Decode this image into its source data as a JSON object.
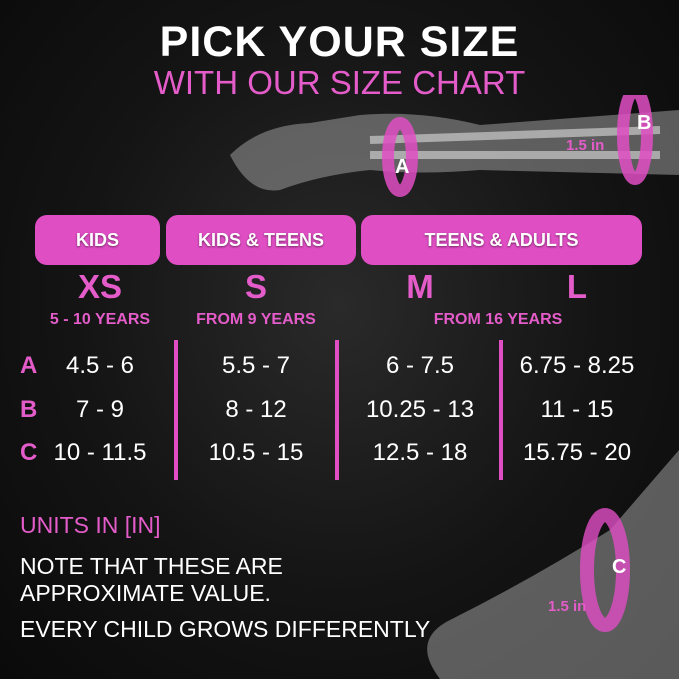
{
  "title": "PICK YOUR SIZE",
  "subtitle": "WITH OUR SIZE CHART",
  "illustration": {
    "arm_labels": [
      "A",
      "B"
    ],
    "arm_measure": "1.5 in",
    "knee_label": "C",
    "knee_measure": "1.5 in"
  },
  "groups": [
    "KIDS",
    "KIDS & TEENS",
    "TEENS & ADULTS"
  ],
  "sizes": [
    "XS",
    "S",
    "M",
    "L"
  ],
  "ages": [
    "5 - 10 YEARS",
    "FROM 9 YEARS",
    "FROM 16 YEARS"
  ],
  "rows": [
    {
      "label": "A",
      "values": [
        "4.5 - 6",
        "5.5 - 7",
        "6 - 7.5",
        "6.75 - 8.25"
      ]
    },
    {
      "label": "B",
      "values": [
        "7 - 9",
        "8 - 12",
        "10.25 - 13",
        "11 - 15"
      ]
    },
    {
      "label": "C",
      "values": [
        "10 - 11.5",
        "10.5 - 15",
        "12.5 - 18",
        "15.75 - 20"
      ]
    }
  ],
  "units": "UNITS IN [IN]",
  "notes": [
    "NOTE THAT THESE ARE",
    "APPROXIMATE VALUE.",
    "EVERY CHILD GROWS DIFFERENTLY"
  ],
  "colors": {
    "accent": "#e04ec4",
    "background": "#141414"
  }
}
